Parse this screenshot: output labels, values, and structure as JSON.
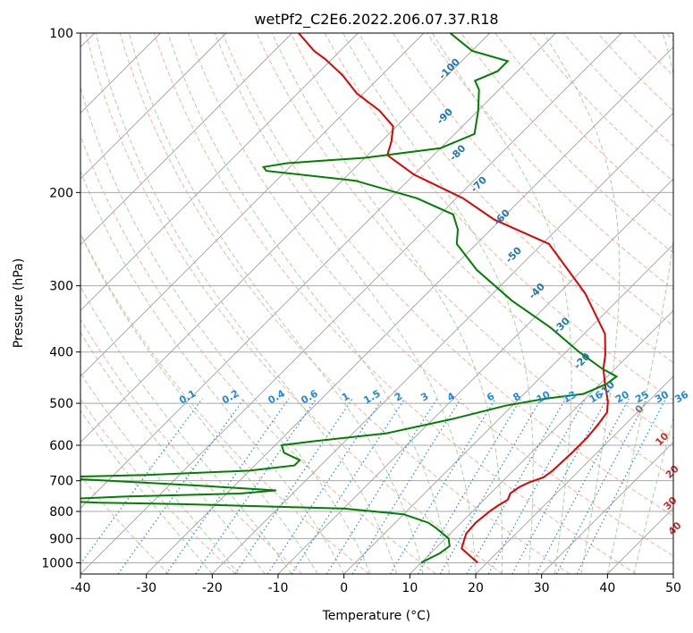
{
  "chart_data": {
    "type": "skew-t",
    "title": "wetPf2_C2E6.2022.206.07.37.R18",
    "xlabel": "Temperature (°C)",
    "ylabel": "Pressure (hPa)",
    "xlim": [
      -40,
      50
    ],
    "ylim": [
      1050,
      100
    ],
    "x_ticks": [
      -40,
      -30,
      -20,
      -10,
      0,
      10,
      20,
      30,
      40,
      50
    ],
    "y_ticks": [
      100,
      200,
      300,
      400,
      500,
      600,
      700,
      800,
      900,
      1000
    ],
    "colors": {
      "temperature": "#e00000",
      "dewpoint": "#007f00",
      "isotherm": "#a0a0a0",
      "dry_adiabat": "#f4a080",
      "moist_adiabat": "#90c890",
      "mixing_ratio": "#1e88e5",
      "label_blue": "#1f77b4",
      "label_red": "#d62728",
      "label_mixing": "#1e88e5"
    },
    "series": [
      {
        "name": "temperature",
        "points": [
          [
            18.6,
            1000
          ],
          [
            14,
            940
          ],
          [
            13.2,
            910
          ],
          [
            12.4,
            880
          ],
          [
            12.2,
            840
          ],
          [
            12.6,
            800
          ],
          [
            13,
            780
          ],
          [
            13.6,
            760
          ],
          [
            13.0,
            740
          ],
          [
            13.4,
            720
          ],
          [
            14.2,
            705
          ],
          [
            15.6,
            690
          ],
          [
            16,
            670
          ],
          [
            16.2,
            620
          ],
          [
            16.2,
            580
          ],
          [
            15.9,
            550
          ],
          [
            15.4,
            520
          ],
          [
            13.8,
            495
          ],
          [
            10.8,
            460
          ],
          [
            8.2,
            430
          ],
          [
            6.4,
            405
          ],
          [
            3.2,
            370
          ],
          [
            -6,
            310
          ],
          [
            -19,
            250
          ],
          [
            -31,
            225
          ],
          [
            -39,
            205
          ],
          [
            -50,
            185
          ],
          [
            -57,
            170
          ],
          [
            -58.5,
            160
          ],
          [
            -60.5,
            150
          ],
          [
            -65,
            140
          ],
          [
            -71,
            130
          ],
          [
            -76,
            120
          ],
          [
            -81,
            112
          ],
          [
            -84,
            108
          ],
          [
            -89,
            100
          ]
        ]
      },
      {
        "name": "dewpoint",
        "points": [
          [
            10,
            1000
          ],
          [
            11.4,
            960
          ],
          [
            11.8,
            930
          ],
          [
            10.5,
            900
          ],
          [
            7,
            860
          ],
          [
            5,
            840
          ],
          [
            0,
            810
          ],
          [
            -10,
            790
          ],
          [
            -35,
            775
          ],
          [
            -48,
            770
          ],
          [
            -58,
            762
          ],
          [
            -45,
            750
          ],
          [
            -28,
            740
          ],
          [
            -23,
            730
          ],
          [
            -34,
            717
          ],
          [
            -45,
            705
          ],
          [
            -60,
            690
          ],
          [
            -45,
            683
          ],
          [
            -30,
            670
          ],
          [
            -24,
            655
          ],
          [
            -24,
            640
          ],
          [
            -27.5,
            620
          ],
          [
            -29,
            600
          ],
          [
            -25,
            590
          ],
          [
            -15,
            570
          ],
          [
            -7,
            535
          ],
          [
            -1,
            505
          ],
          [
            4,
            490
          ],
          [
            9,
            480
          ],
          [
            11,
            460
          ],
          [
            11.4,
            445
          ],
          [
            8,
            430
          ],
          [
            2,
            400
          ],
          [
            -6,
            360
          ],
          [
            -16,
            320
          ],
          [
            -26,
            280
          ],
          [
            -33,
            250
          ],
          [
            -35,
            235
          ],
          [
            -38,
            220
          ],
          [
            -46,
            205
          ],
          [
            -58,
            190
          ],
          [
            -73,
            182
          ],
          [
            -74,
            179
          ],
          [
            -71,
            176
          ],
          [
            -60,
            172
          ],
          [
            -50,
            165
          ],
          [
            -47,
            155
          ],
          [
            -50,
            140
          ],
          [
            -53,
            128
          ],
          [
            -55,
            123
          ],
          [
            -53,
            118
          ],
          [
            -53,
            113
          ],
          [
            -60,
            108
          ],
          [
            -66,
            100
          ]
        ]
      }
    ],
    "dry_adiabat_labels": [
      {
        "text": "-100",
        "x": -60.0,
        "p": 118,
        "color": "blue"
      },
      {
        "text": "-90",
        "x": -53.5,
        "p": 145,
        "color": "blue"
      },
      {
        "text": "-80",
        "x": -46.0,
        "p": 170,
        "color": "blue"
      },
      {
        "text": "-70",
        "x": -38.0,
        "p": 195,
        "color": "blue"
      },
      {
        "text": "-60",
        "x": -29.5,
        "p": 225,
        "color": "blue"
      },
      {
        "text": "-50",
        "x": -22.0,
        "p": 265,
        "color": "blue"
      },
      {
        "text": "-40",
        "x": -13.0,
        "p": 310,
        "color": "blue"
      },
      {
        "text": "-30",
        "x": -4.0,
        "p": 360,
        "color": "blue"
      },
      {
        "text": "-20",
        "x": 4.5,
        "p": 420,
        "color": "blue"
      },
      {
        "text": "-10",
        "x": 12.5,
        "p": 475,
        "color": "blue"
      },
      {
        "text": "0",
        "x": 20.5,
        "p": 518,
        "color": "gray"
      },
      {
        "text": "10",
        "x": 28.5,
        "p": 590,
        "color": "red"
      },
      {
        "text": "20",
        "x": 35.0,
        "p": 680,
        "color": "red"
      },
      {
        "text": "30",
        "x": 39.5,
        "p": 780,
        "color": "red"
      },
      {
        "text": "40",
        "x": 44.0,
        "p": 870,
        "color": "red"
      }
    ],
    "mixing_ratio_labels": [
      "0.1",
      "0.2",
      "0.4",
      "0.6",
      "1",
      "1.5",
      "2",
      "3",
      "4",
      "6",
      "8",
      "10",
      "13",
      "16",
      "20",
      "25",
      "30",
      "36"
    ],
    "mixing_ratio_label_positions": [
      -23.5,
      -17.0,
      -10.0,
      -5.0,
      0.5,
      4.5,
      8.5,
      12.5,
      16.5,
      22.5,
      26.5,
      30.5,
      34.5,
      38.5,
      42.5,
      45.5,
      48.5,
      51.5
    ]
  }
}
